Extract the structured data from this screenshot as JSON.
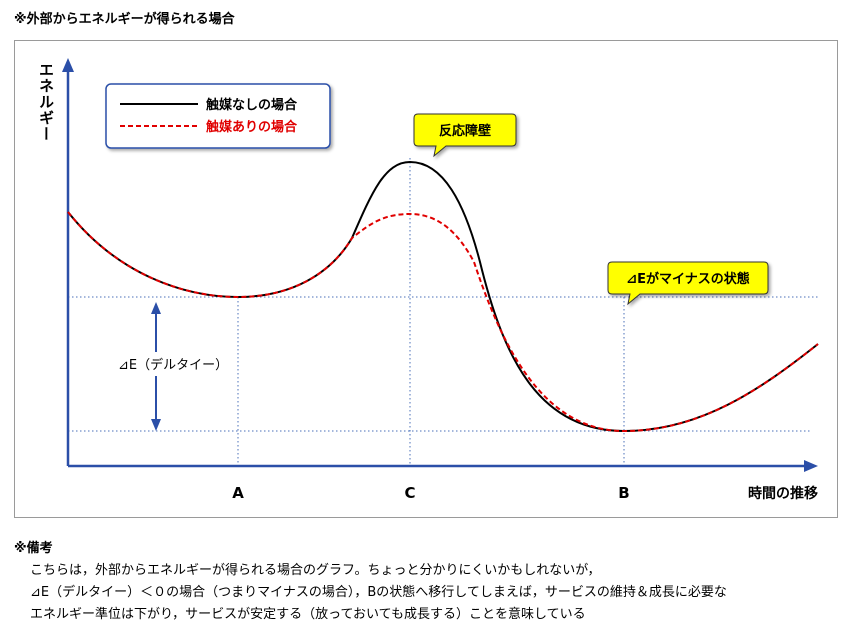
{
  "page_title": "※外部からエネルギーが得られる場合",
  "y_axis_label": "エネルギー",
  "x_axis_label": "時間の推移",
  "x_points": [
    "A",
    "C",
    "B"
  ],
  "legend": {
    "no_catalyst": "触媒なしの場合",
    "with_catalyst": "触媒ありの場合"
  },
  "callouts": {
    "barrier": "反応障壁",
    "negative_delta": "⊿Eがマイナスの状態"
  },
  "delta_label": "⊿E（デルタイー）",
  "colors": {
    "no_catalyst": "#000000",
    "with_catalyst": "#e00000",
    "axis": "#2b4fa8",
    "guide": "#4a6fb8",
    "callout_fill": "#ffff00",
    "legend_border": "#2b4fa8"
  },
  "remarks": {
    "heading": "※備考",
    "lines": [
      "こちらは，外部からエネルギーが得られる場合のグラフ。ちょっと分かりにくいかもしれないが，",
      "⊿E（デルタイー）＜０の場合（つまりマイナスの場合），Bの状態へ移行してしまえば，サービスの維持＆成長に必要な",
      "エネルギー準位は下がり，サービスが安定する（放っておいても成長する）ことを意味している"
    ]
  }
}
